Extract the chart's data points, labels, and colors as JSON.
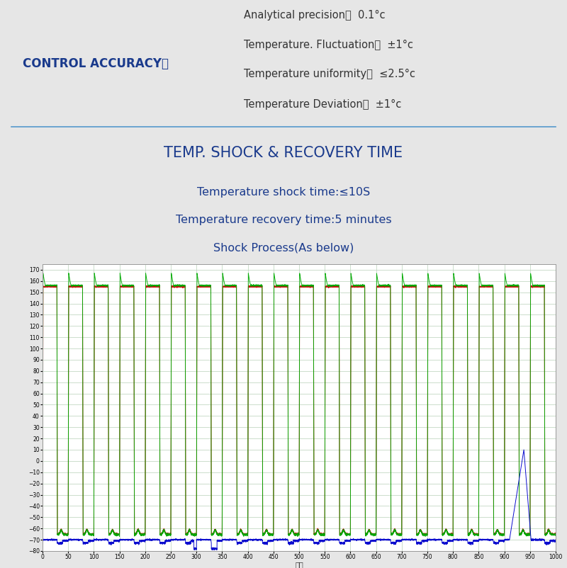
{
  "bg_color": "#e6e6e6",
  "title_color": "#1a3a8c",
  "dark_text_color": "#333333",
  "control_label": "CONTROL ACCURACY：",
  "control_items": [
    "Analytical precision：  0.1°c",
    "Temperature. Fluctuation：  ±1°c",
    "Temperature uniformity：  ≤2.5°c",
    "Temperature Deviation：  ±1°c"
  ],
  "section_title": "TEMP. SHOCK & RECOVERY TIME",
  "sub_lines": [
    "Temperature shock time:≤10S",
    "Temperature recovery time:5 minutes",
    "Shock Process(As below)"
  ],
  "chart_bg": "#ffffff",
  "chart_grid_color": "#b8d0b8",
  "chart_ymin": -80,
  "chart_ymax": 175,
  "chart_xmin": 0,
  "chart_xmax": 1000,
  "y_ticks": [
    -80,
    -70,
    -60,
    -50,
    -40,
    -30,
    -20,
    -10,
    0,
    10,
    20,
    30,
    40,
    50,
    60,
    70,
    80,
    90,
    100,
    110,
    120,
    130,
    140,
    150,
    160,
    170
  ],
  "x_ticks": [
    0,
    50,
    100,
    150,
    200,
    250,
    300,
    350,
    400,
    450,
    500,
    550,
    600,
    650,
    700,
    750,
    800,
    850,
    900,
    950,
    1000
  ],
  "xlabel": "加热",
  "line_color_red": "#cc0000",
  "line_color_green": "#00aa00",
  "line_color_blue": "#0000cc",
  "divider_color": "#5599cc"
}
